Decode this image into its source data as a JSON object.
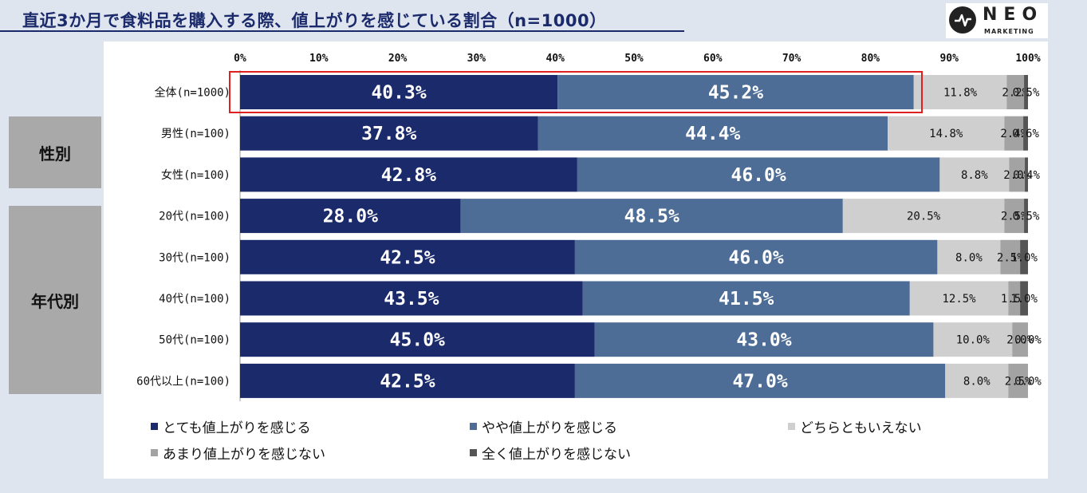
{
  "title": "直近3か月で食料品を購入する際、値上がりを感じている割合（n=1000）",
  "logo": {
    "name": "NEO",
    "sub": "MARKETING"
  },
  "groups": [
    {
      "label": "性別"
    },
    {
      "label": "年代別"
    }
  ],
  "colors": [
    "#1b2a6b",
    "#4e6d96",
    "#cfcfcf",
    "#a3a3a3",
    "#555555"
  ],
  "chart_data": {
    "type": "bar",
    "orientation": "horizontal",
    "stacked": true,
    "xlim": [
      0,
      100
    ],
    "x_ticks": [
      "0%",
      "10%",
      "20%",
      "30%",
      "40%",
      "50%",
      "60%",
      "70%",
      "80%",
      "90%",
      "100%"
    ],
    "categories": [
      "全体(n=1000)",
      "男性(n=100)",
      "女性(n=100)",
      "20代(n=100)",
      "30代(n=100)",
      "40代(n=100)",
      "50代(n=100)",
      "60代以上(n=100)"
    ],
    "series": [
      {
        "name": "とても値上がりを感じる",
        "values": [
          40.3,
          37.8,
          42.8,
          28.0,
          42.5,
          43.5,
          45.0,
          42.5
        ]
      },
      {
        "name": "やや値上がりを感じる",
        "values": [
          45.2,
          44.4,
          46.0,
          48.5,
          46.0,
          41.5,
          43.0,
          47.0
        ]
      },
      {
        "name": "どちらともいえない",
        "values": [
          11.8,
          14.8,
          8.8,
          20.5,
          8.0,
          12.5,
          10.0,
          8.0
        ]
      },
      {
        "name": "あまり値上がりを感じない",
        "values": [
          2.2,
          2.4,
          2.0,
          2.5,
          2.5,
          1.5,
          2.0,
          2.5
        ]
      },
      {
        "name": "全く値上がりを感じない",
        "values": [
          0.5,
          0.6,
          0.4,
          0.5,
          1.0,
          1.0,
          0.0,
          0.0
        ]
      }
    ],
    "legend_position": "bottom",
    "grid": false
  }
}
